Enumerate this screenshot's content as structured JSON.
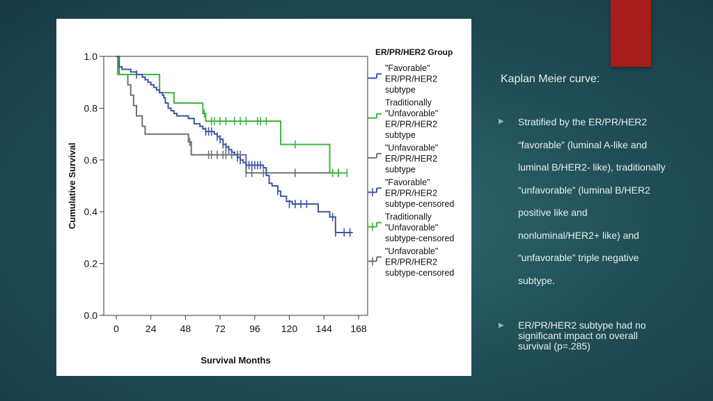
{
  "slide": {
    "title": "Kaplan Meier curve:",
    "bullets": [
      "Stratified by the ER/PR/HER2 “favorable” (luminal A-like and luminal B/HER2- like), traditionally “unfavorable” (luminal B/HER2 positive like and nonluminal/HER2+ like) and “unfavorable” triple negative subtype.",
      "ER/PR/HER2 subtype had no significant impact on overall survival (p=.285)"
    ]
  },
  "colors": {
    "favorable": "#3a55a4",
    "trad_unfavorable": "#3cb43c",
    "unfavorable": "#6e6e6e",
    "accent": "#a81c1c"
  },
  "chart_data": {
    "type": "line",
    "xlabel": "Survival Months",
    "ylabel": "Cumulative Survival",
    "xlim": [
      0,
      168
    ],
    "ylim": [
      0.0,
      1.0
    ],
    "xticks": [
      "0",
      "24",
      "48",
      "72",
      "96",
      "120",
      "144",
      "168"
    ],
    "yticks": [
      "0.0",
      "0.2",
      "0.4",
      "0.6",
      "0.8",
      "1.0"
    ],
    "legend_title": "ER/PR/HER2 Group",
    "legend": [
      [
        "\"Favorable\"",
        "ER/PR/HER2",
        "subtype"
      ],
      [
        "Traditionally",
        "\"Unfavorable\"",
        "ER/PR/HER2",
        "subtype"
      ],
      [
        "\"Unfavorable\"",
        "ER/PR/HER2",
        "subtype"
      ],
      [
        "\"Favorable\"",
        "ER/PR/HER2",
        "subtype-censored"
      ],
      [
        "Traditionally",
        "\"Unfavorable\"",
        "subtype-censored"
      ],
      [
        "\"Unfavorable\"",
        "ER/PR/HER2",
        "subtype-censored"
      ]
    ],
    "series": [
      {
        "name": "\"Favorable\" ER/PR/HER2 subtype",
        "steps": [
          [
            0,
            1.0
          ],
          [
            2,
            0.96
          ],
          [
            4,
            0.95
          ],
          [
            10,
            0.94
          ],
          [
            14,
            0.93
          ],
          [
            18,
            0.92
          ],
          [
            20,
            0.91
          ],
          [
            22,
            0.9
          ],
          [
            24,
            0.89
          ],
          [
            26,
            0.88
          ],
          [
            28,
            0.87
          ],
          [
            30,
            0.86
          ],
          [
            32,
            0.85
          ],
          [
            33,
            0.84
          ],
          [
            34,
            0.82
          ],
          [
            36,
            0.8
          ],
          [
            38,
            0.79
          ],
          [
            40,
            0.78
          ],
          [
            42,
            0.77
          ],
          [
            50,
            0.76
          ],
          [
            54,
            0.74
          ],
          [
            58,
            0.73
          ],
          [
            60,
            0.72
          ],
          [
            62,
            0.71
          ],
          [
            68,
            0.7
          ],
          [
            70,
            0.69
          ],
          [
            72,
            0.68
          ],
          [
            74,
            0.66
          ],
          [
            76,
            0.65
          ],
          [
            78,
            0.64
          ],
          [
            80,
            0.63
          ],
          [
            82,
            0.62
          ],
          [
            84,
            0.61
          ],
          [
            86,
            0.6
          ],
          [
            88,
            0.59
          ],
          [
            90,
            0.58
          ],
          [
            102,
            0.57
          ],
          [
            104,
            0.54
          ],
          [
            106,
            0.51
          ],
          [
            108,
            0.5
          ],
          [
            112,
            0.48
          ],
          [
            114,
            0.46
          ],
          [
            118,
            0.44
          ],
          [
            122,
            0.43
          ],
          [
            140,
            0.4
          ],
          [
            148,
            0.38
          ],
          [
            152,
            0.32
          ],
          [
            164,
            0.32
          ]
        ],
        "censored": [
          [
            14,
            0.93
          ],
          [
            62,
            0.71
          ],
          [
            64,
            0.71
          ],
          [
            66,
            0.71
          ],
          [
            70,
            0.69
          ],
          [
            72,
            0.68
          ],
          [
            74,
            0.66
          ],
          [
            76,
            0.65
          ],
          [
            78,
            0.64
          ],
          [
            84,
            0.61
          ],
          [
            86,
            0.6
          ],
          [
            90,
            0.58
          ],
          [
            92,
            0.58
          ],
          [
            94,
            0.58
          ],
          [
            96,
            0.58
          ],
          [
            98,
            0.58
          ],
          [
            100,
            0.58
          ],
          [
            112,
            0.48
          ],
          [
            120,
            0.43
          ],
          [
            124,
            0.43
          ],
          [
            128,
            0.43
          ],
          [
            132,
            0.43
          ],
          [
            150,
            0.38
          ],
          [
            152,
            0.32
          ],
          [
            158,
            0.32
          ],
          [
            162,
            0.32
          ]
        ]
      },
      {
        "name": "Traditionally \"Unfavorable\" ER/PR/HER2 subtype",
        "steps": [
          [
            0,
            1.0
          ],
          [
            1,
            0.93
          ],
          [
            30,
            0.86
          ],
          [
            40,
            0.82
          ],
          [
            60,
            0.78
          ],
          [
            62,
            0.75
          ],
          [
            114,
            0.66
          ],
          [
            148,
            0.55
          ],
          [
            160,
            0.55
          ]
        ],
        "censored": [
          [
            61,
            0.78
          ],
          [
            66,
            0.75
          ],
          [
            68,
            0.75
          ],
          [
            72,
            0.75
          ],
          [
            76,
            0.75
          ],
          [
            82,
            0.75
          ],
          [
            86,
            0.75
          ],
          [
            90,
            0.75
          ],
          [
            98,
            0.75
          ],
          [
            100,
            0.75
          ],
          [
            104,
            0.75
          ],
          [
            124,
            0.66
          ],
          [
            150,
            0.55
          ],
          [
            154,
            0.55
          ],
          [
            160,
            0.55
          ]
        ]
      },
      {
        "name": "\"Unfavorable\" ER/PR/HER2 subtype",
        "steps": [
          [
            0,
            1.0
          ],
          [
            2,
            0.93
          ],
          [
            8,
            0.89
          ],
          [
            10,
            0.85
          ],
          [
            12,
            0.81
          ],
          [
            14,
            0.77
          ],
          [
            18,
            0.73
          ],
          [
            20,
            0.7
          ],
          [
            50,
            0.67
          ],
          [
            52,
            0.62
          ],
          [
            90,
            0.55
          ],
          [
            154,
            0.55
          ]
        ],
        "censored": [
          [
            51,
            0.67
          ],
          [
            64,
            0.62
          ],
          [
            66,
            0.62
          ],
          [
            70,
            0.62
          ],
          [
            74,
            0.62
          ],
          [
            76,
            0.62
          ],
          [
            80,
            0.62
          ],
          [
            84,
            0.62
          ],
          [
            86,
            0.62
          ],
          [
            90,
            0.55
          ],
          [
            94,
            0.55
          ],
          [
            102,
            0.55
          ],
          [
            124,
            0.55
          ],
          [
            154,
            0.55
          ]
        ]
      }
    ]
  }
}
